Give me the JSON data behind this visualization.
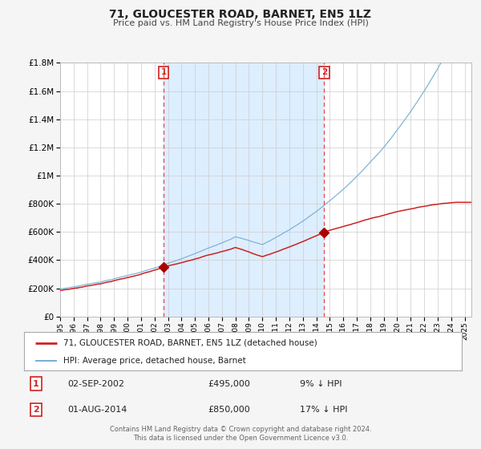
{
  "title": "71, GLOUCESTER ROAD, BARNET, EN5 1LZ",
  "subtitle": "Price paid vs. HM Land Registry's House Price Index (HPI)",
  "bg_color": "#f5f5f5",
  "plot_bg_color": "#ffffff",
  "grid_color": "#cccccc",
  "highlight_bg_color": "#ddeeff",
  "sale1_date": 2002.67,
  "sale1_price": 495000,
  "sale2_date": 2014.58,
  "sale2_price": 850000,
  "legend1_label": "71, GLOUCESTER ROAD, BARNET, EN5 1LZ (detached house)",
  "legend2_label": "HPI: Average price, detached house, Barnet",
  "footer1": "Contains HM Land Registry data © Crown copyright and database right 2024.",
  "footer2": "This data is licensed under the Open Government Licence v3.0.",
  "ylim": [
    0,
    1800000
  ],
  "xlim_start": 1995.0,
  "xlim_end": 2025.5,
  "hpi_color": "#7ab0d4",
  "price_color": "#cc2222",
  "marker_color": "#aa0000",
  "dashed_color": "#ee4444",
  "sale1_label": "1",
  "sale2_label": "2"
}
